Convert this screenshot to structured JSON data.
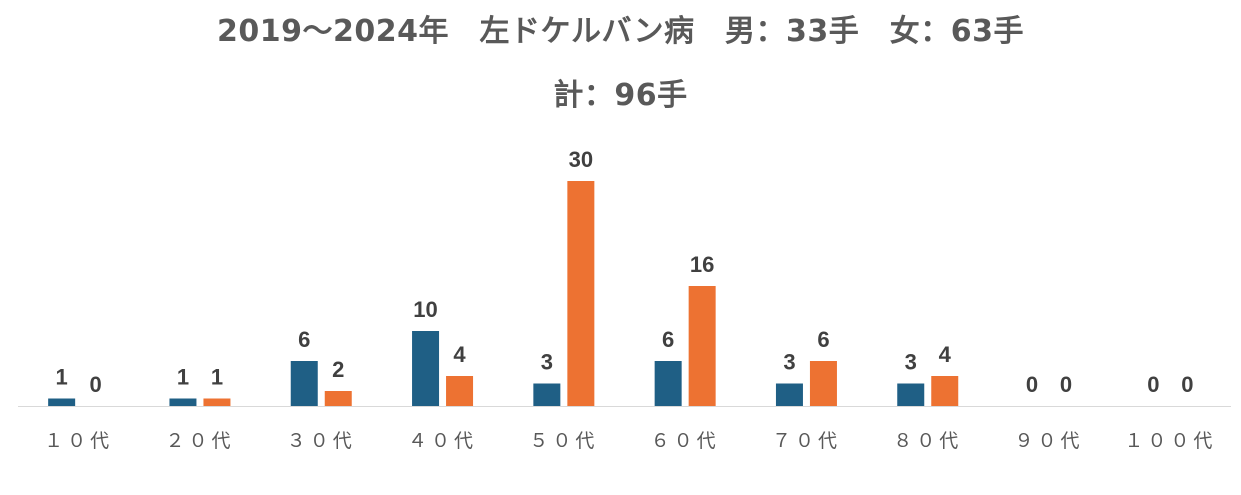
{
  "title": {
    "line1": "2019～2024年　左ドケルバン病　男：33手　女：63手",
    "line2": "計：96手"
  },
  "chart_data": {
    "type": "bar",
    "categories": [
      "１０代",
      "２０代",
      "３０代",
      "４０代",
      "５０代",
      "６０代",
      "７０代",
      "８０代",
      "９０代",
      "１００代"
    ],
    "series": [
      {
        "values": [
          1,
          1,
          6,
          10,
          3,
          6,
          3,
          3,
          0,
          0
        ],
        "color": "#1f5f85"
      },
      {
        "values": [
          0,
          1,
          2,
          4,
          30,
          16,
          6,
          4,
          0,
          0
        ],
        "color": "#ed7232"
      }
    ],
    "ylim": [
      0,
      30
    ],
    "grid": false,
    "legend": "none",
    "data_labels": true
  }
}
